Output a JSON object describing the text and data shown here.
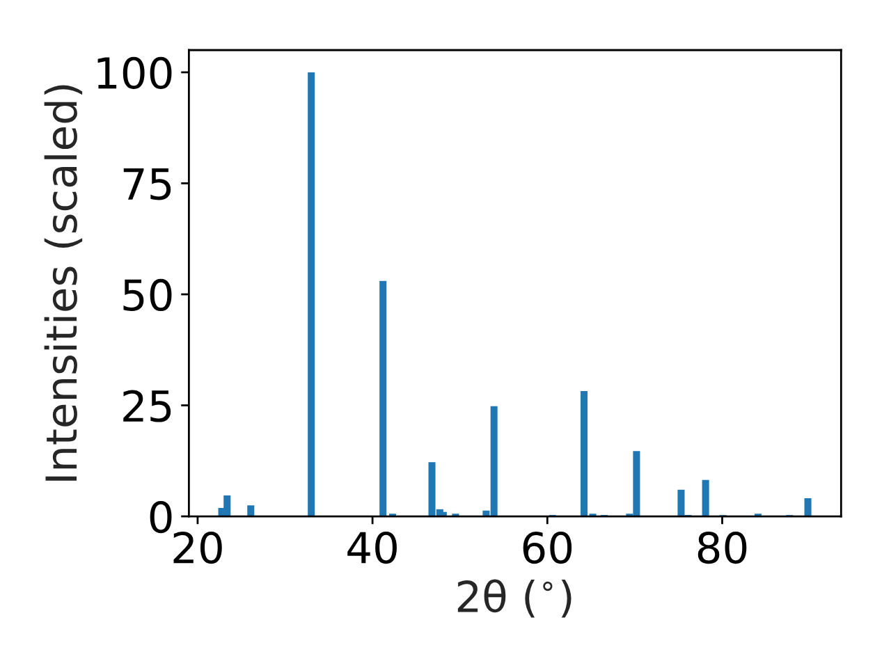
{
  "chart_data": {
    "type": "bar",
    "xlabel": "2θ ($^{∘}$)",
    "ylabel": "Intensities (scaled)",
    "color": "#1f77b4",
    "x": [
      22.76,
      23.37,
      26.08,
      33.0,
      41.2,
      42.3,
      46.8,
      47.7,
      48.1,
      49.5,
      53.0,
      53.9,
      60.6,
      64.2,
      65.2,
      66.5,
      69.4,
      70.2,
      75.3,
      76.1,
      78.1,
      80.1,
      84.1,
      87.7,
      89.8
    ],
    "values": [
      1.9,
      4.7,
      2.5,
      100,
      53.0,
      0.6,
      12.2,
      1.6,
      1.0,
      0.6,
      1.3,
      24.8,
      0.3,
      28.2,
      0.6,
      0.3,
      0.6,
      14.7,
      6.0,
      0.3,
      8.2,
      0.3,
      0.6,
      0.3,
      4.1
    ],
    "xlim": [
      19.0,
      93.6
    ],
    "ylim": [
      0,
      105
    ],
    "xticks": [
      20,
      40,
      60,
      80
    ],
    "yticks": [
      0,
      25,
      50,
      75,
      100
    ],
    "grid": false
  }
}
